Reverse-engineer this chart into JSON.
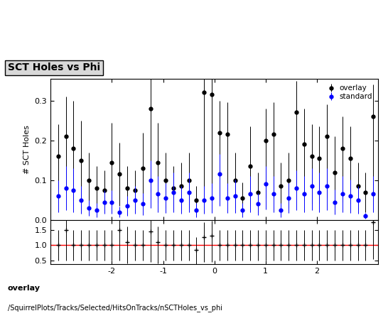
{
  "title": "SCT Holes vs Phi",
  "ylabel_main": "# SCT Holes",
  "footer_line1": "overlay",
  "footer_line2": "/SquirrelPlots/Tracks/Selected/HitsOnTracks/nSCTHoles_vs_phi",
  "xlim": [
    -3.2,
    3.2
  ],
  "ylim_main": [
    0,
    0.355
  ],
  "ylim_ratio": [
    0.38,
    1.82
  ],
  "ratio_yticks": [
    0.5,
    1.0,
    1.5
  ],
  "main_yticks": [
    0,
    0.1,
    0.2,
    0.3
  ],
  "xticks": [
    -2,
    -1,
    0,
    1,
    2
  ],
  "overlay_color": "#000000",
  "standard_color": "#0000ff",
  "ratio_line_color": "#ff0000",
  "overlay_x": [
    -3.05,
    -2.9,
    -2.75,
    -2.6,
    -2.45,
    -2.3,
    -2.15,
    -2.0,
    -1.85,
    -1.7,
    -1.55,
    -1.4,
    -1.25,
    -1.1,
    -0.95,
    -0.8,
    -0.65,
    -0.5,
    -0.35,
    -0.2,
    -0.05,
    0.1,
    0.25,
    0.4,
    0.55,
    0.7,
    0.85,
    1.0,
    1.15,
    1.3,
    1.45,
    1.6,
    1.75,
    1.9,
    2.05,
    2.2,
    2.35,
    2.5,
    2.65,
    2.8,
    2.95,
    3.1
  ],
  "overlay_y": [
    0.16,
    0.21,
    0.18,
    0.15,
    0.1,
    0.08,
    0.075,
    0.145,
    0.115,
    0.08,
    0.075,
    0.13,
    0.28,
    0.145,
    0.1,
    0.08,
    0.085,
    0.1,
    0.05,
    0.32,
    0.315,
    0.22,
    0.215,
    0.1,
    0.055,
    0.135,
    0.07,
    0.2,
    0.215,
    0.085,
    0.1,
    0.27,
    0.19,
    0.16,
    0.155,
    0.21,
    0.12,
    0.18,
    0.155,
    0.085,
    0.07,
    0.26
  ],
  "overlay_yerr_lo": [
    0.08,
    0.14,
    0.13,
    0.1,
    0.06,
    0.05,
    0.05,
    0.1,
    0.08,
    0.05,
    0.05,
    0.09,
    0.21,
    0.1,
    0.07,
    0.055,
    0.06,
    0.07,
    0.035,
    0.24,
    0.235,
    0.16,
    0.16,
    0.07,
    0.04,
    0.1,
    0.05,
    0.145,
    0.16,
    0.06,
    0.07,
    0.2,
    0.14,
    0.12,
    0.115,
    0.155,
    0.09,
    0.135,
    0.115,
    0.06,
    0.05,
    0.195
  ],
  "overlay_yerr_hi": [
    0.08,
    0.1,
    0.12,
    0.1,
    0.07,
    0.055,
    0.05,
    0.1,
    0.08,
    0.055,
    0.05,
    0.09,
    0.09,
    0.1,
    0.07,
    0.055,
    0.06,
    0.07,
    0.035,
    0.08,
    0.08,
    0.08,
    0.08,
    0.07,
    0.04,
    0.1,
    0.05,
    0.08,
    0.08,
    0.06,
    0.07,
    0.08,
    0.09,
    0.08,
    0.08,
    0.08,
    0.09,
    0.08,
    0.08,
    0.06,
    0.05,
    0.08
  ],
  "standard_x": [
    -3.05,
    -2.9,
    -2.75,
    -2.6,
    -2.45,
    -2.3,
    -2.15,
    -2.0,
    -1.85,
    -1.7,
    -1.55,
    -1.4,
    -1.25,
    -1.1,
    -0.95,
    -0.8,
    -0.65,
    -0.5,
    -0.35,
    -0.2,
    -0.05,
    0.1,
    0.25,
    0.4,
    0.55,
    0.7,
    0.85,
    1.0,
    1.15,
    1.3,
    1.45,
    1.6,
    1.75,
    1.9,
    2.05,
    2.2,
    2.35,
    2.5,
    2.65,
    2.8,
    2.95,
    3.1
  ],
  "standard_y": [
    0.06,
    0.08,
    0.075,
    0.05,
    0.03,
    0.025,
    0.045,
    0.045,
    0.02,
    0.035,
    0.05,
    0.04,
    0.1,
    0.065,
    0.055,
    0.07,
    0.05,
    0.07,
    0.025,
    0.05,
    0.055,
    0.115,
    0.055,
    0.06,
    0.025,
    0.065,
    0.04,
    0.09,
    0.065,
    0.025,
    0.055,
    0.08,
    0.065,
    0.085,
    0.07,
    0.085,
    0.045,
    0.065,
    0.06,
    0.05,
    0.01,
    0.065
  ],
  "standard_yerr_lo": [
    0.04,
    0.055,
    0.055,
    0.035,
    0.02,
    0.018,
    0.03,
    0.03,
    0.014,
    0.025,
    0.035,
    0.028,
    0.07,
    0.045,
    0.038,
    0.05,
    0.035,
    0.05,
    0.018,
    0.035,
    0.038,
    0.08,
    0.038,
    0.042,
    0.018,
    0.045,
    0.028,
    0.063,
    0.045,
    0.018,
    0.038,
    0.056,
    0.045,
    0.06,
    0.05,
    0.06,
    0.032,
    0.045,
    0.042,
    0.035,
    0.007,
    0.045
  ],
  "standard_yerr_hi": [
    0.04,
    0.055,
    0.055,
    0.035,
    0.02,
    0.018,
    0.03,
    0.03,
    0.014,
    0.025,
    0.035,
    0.028,
    0.05,
    0.045,
    0.038,
    0.05,
    0.035,
    0.05,
    0.018,
    0.035,
    0.038,
    0.05,
    0.038,
    0.042,
    0.018,
    0.045,
    0.028,
    0.045,
    0.045,
    0.018,
    0.038,
    0.045,
    0.045,
    0.045,
    0.05,
    0.045,
    0.032,
    0.045,
    0.042,
    0.035,
    0.007,
    0.045
  ],
  "ratio_x": [
    -3.05,
    -2.9,
    -2.75,
    -2.6,
    -2.45,
    -2.3,
    -2.15,
    -2.0,
    -1.85,
    -1.7,
    -1.55,
    -1.4,
    -1.25,
    -1.1,
    -0.95,
    -0.8,
    -0.65,
    -0.5,
    -0.35,
    -0.2,
    -0.05,
    0.1,
    0.25,
    0.4,
    0.55,
    0.7,
    0.85,
    1.0,
    1.15,
    1.3,
    1.45,
    1.6,
    1.75,
    1.9,
    2.05,
    2.2,
    2.35,
    2.5,
    2.65,
    2.8,
    2.95,
    3.1
  ],
  "ratio_y": [
    1.0,
    1.5,
    1.0,
    1.0,
    1.0,
    1.0,
    1.0,
    1.0,
    1.5,
    1.1,
    1.0,
    1.0,
    1.45,
    1.1,
    1.0,
    1.0,
    1.0,
    1.0,
    0.85,
    1.25,
    1.3,
    1.0,
    1.0,
    1.0,
    1.0,
    1.0,
    1.0,
    1.0,
    1.0,
    1.0,
    1.0,
    1.0,
    1.0,
    1.0,
    1.0,
    1.0,
    1.0,
    1.0,
    1.0,
    1.0,
    1.0,
    1.75
  ],
  "ratio_yerr_lo": [
    0.5,
    1.0,
    0.5,
    0.5,
    0.5,
    0.5,
    0.5,
    0.5,
    1.0,
    0.7,
    0.5,
    0.5,
    1.0,
    0.7,
    0.5,
    0.5,
    0.5,
    0.5,
    0.6,
    0.8,
    0.85,
    0.5,
    0.5,
    0.5,
    0.5,
    0.5,
    0.5,
    0.5,
    0.5,
    0.5,
    0.5,
    0.5,
    0.5,
    0.5,
    0.5,
    0.5,
    0.5,
    0.5,
    0.5,
    0.5,
    0.5,
    1.2
  ],
  "ratio_yerr_hi": [
    0.5,
    0.5,
    0.5,
    0.5,
    0.5,
    0.5,
    0.5,
    0.5,
    0.5,
    0.5,
    0.5,
    0.5,
    0.5,
    0.5,
    0.5,
    0.5,
    0.5,
    0.5,
    0.4,
    0.5,
    0.5,
    0.5,
    0.5,
    0.5,
    0.5,
    0.5,
    0.5,
    0.5,
    0.5,
    0.5,
    0.5,
    0.5,
    0.5,
    0.5,
    0.5,
    0.5,
    0.5,
    0.5,
    0.5,
    0.5,
    0.5,
    0.3
  ]
}
